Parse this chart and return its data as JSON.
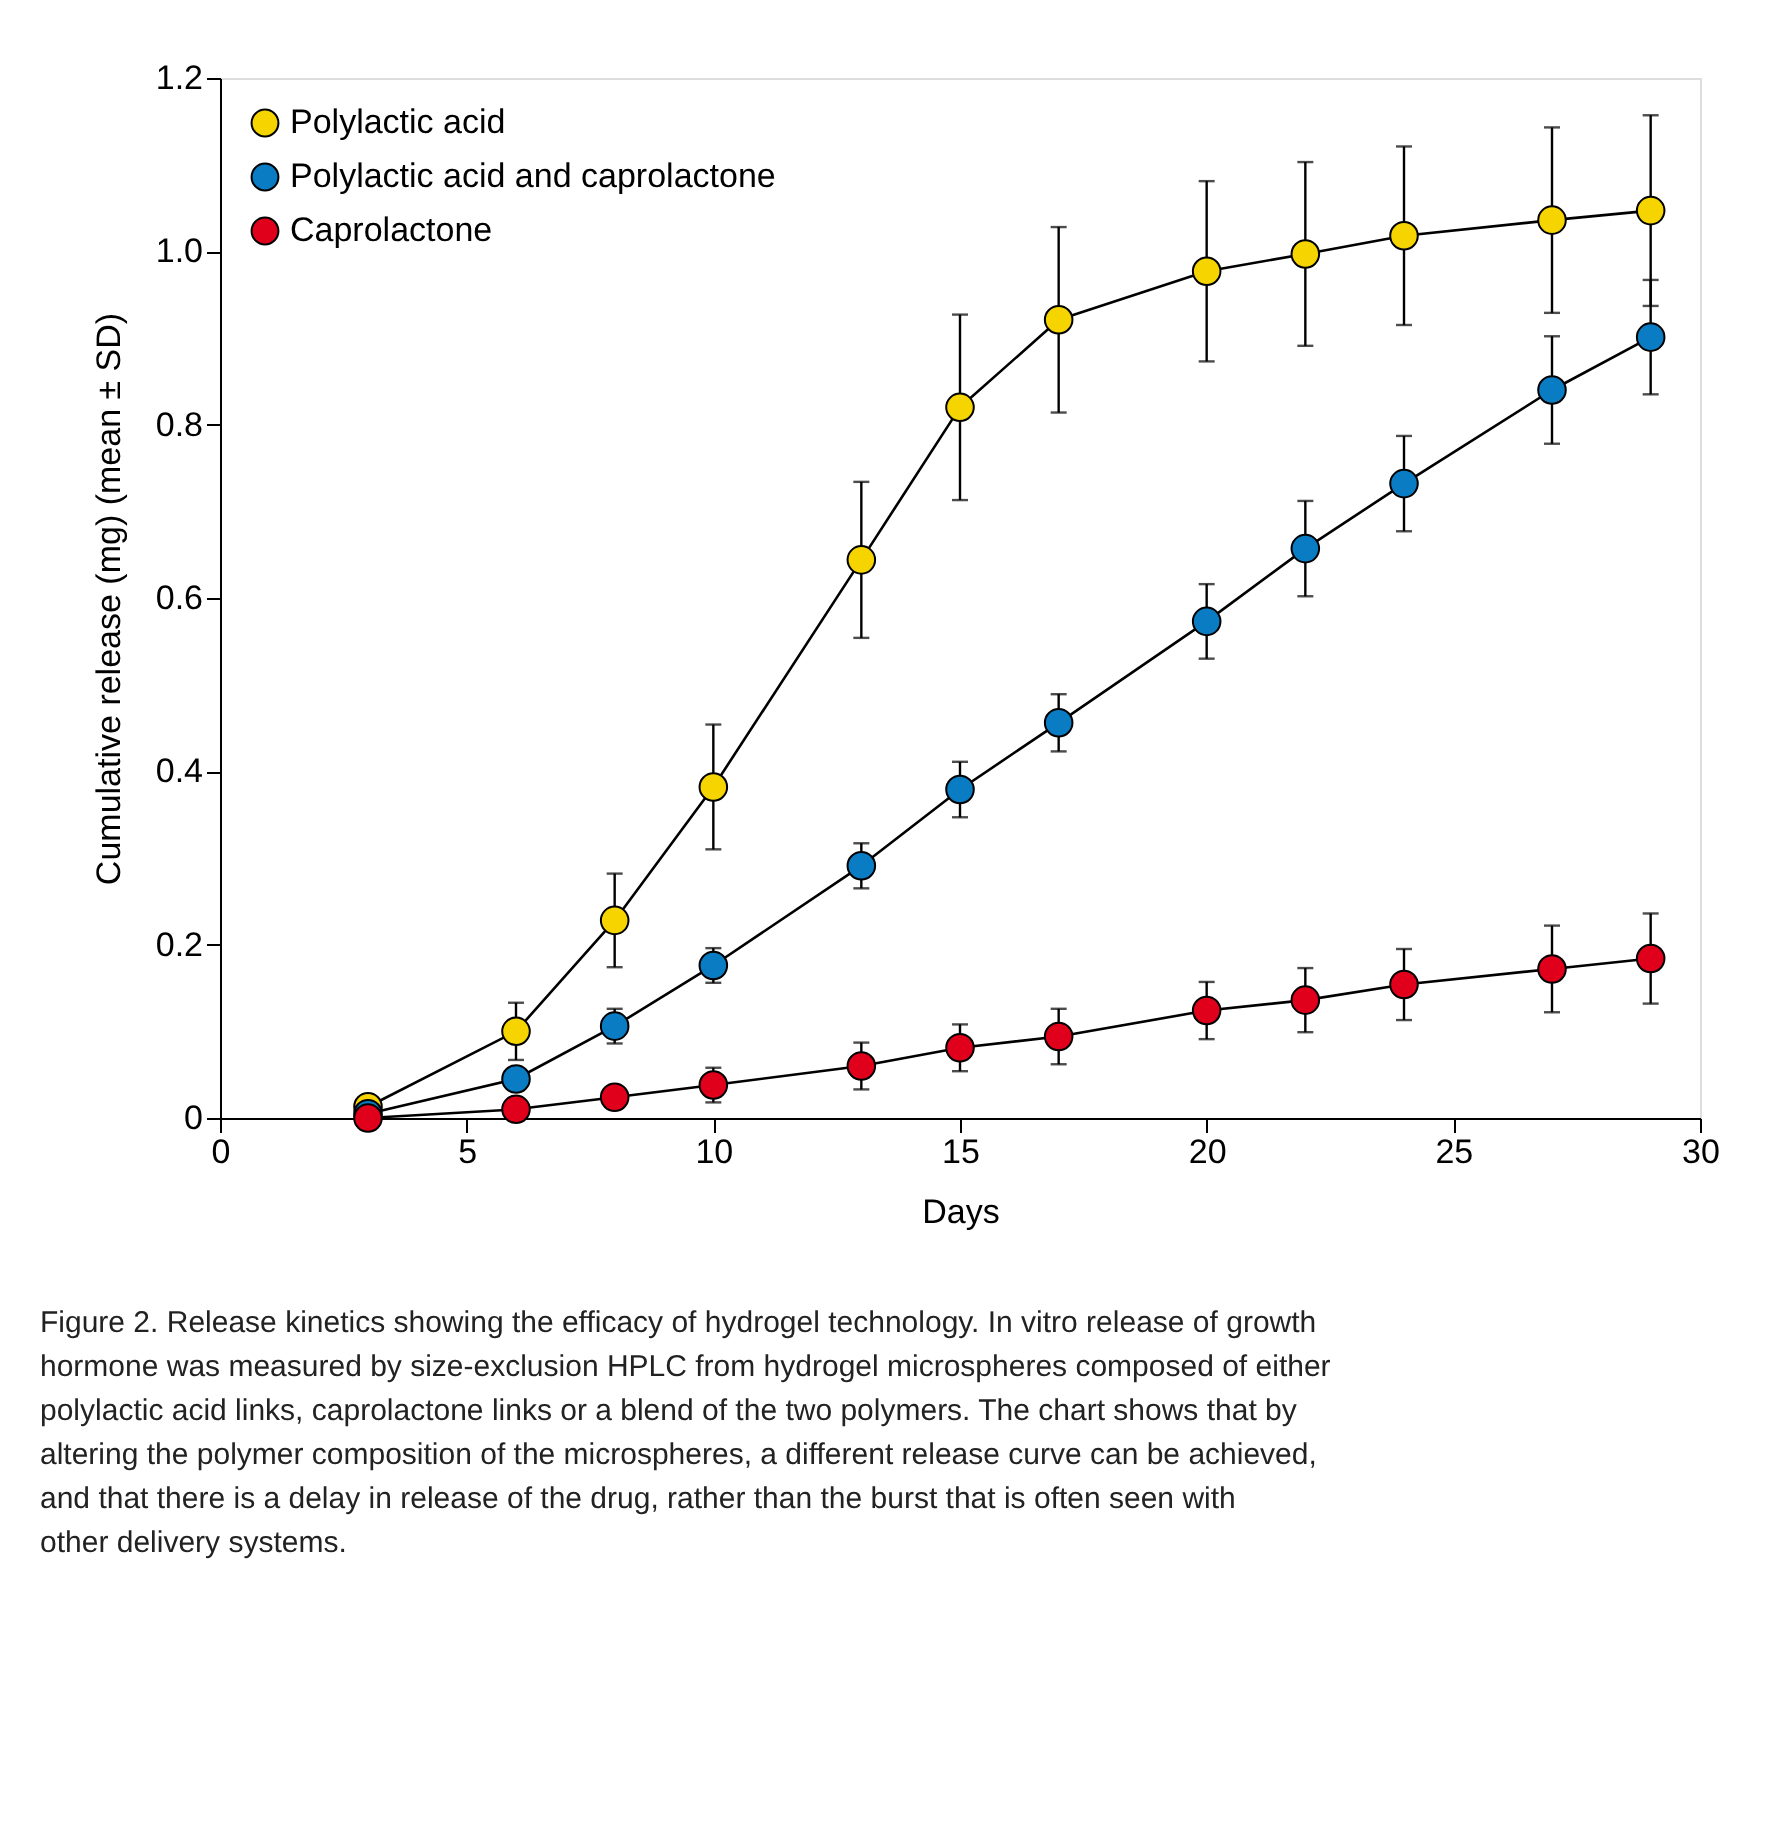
{
  "chart_data": {
    "type": "line",
    "xlabel": "Days",
    "ylabel": "Cumulative release (mg) (mean ± SD)",
    "x": [
      3,
      6,
      8,
      10,
      13,
      15,
      17,
      20,
      22,
      24,
      27,
      29
    ],
    "series": [
      {
        "name": "Polylactic acid",
        "color": "#f5d400",
        "values": [
          0.013,
          0.1,
          0.228,
          0.382,
          0.644,
          0.82,
          0.921,
          0.977,
          0.997,
          1.018,
          1.036,
          1.047
        ],
        "errors": [
          null,
          0.033,
          0.054,
          0.072,
          0.09,
          0.107,
          0.107,
          0.104,
          0.106,
          0.103,
          0.107,
          0.11
        ]
      },
      {
        "name": "Polylactic acid and caprolactone",
        "color": "#0a7cc4",
        "values": [
          0.005,
          0.045,
          0.106,
          0.176,
          0.291,
          0.379,
          0.456,
          0.573,
          0.657,
          0.732,
          0.84,
          0.901
        ],
        "errors": [
          null,
          0.012,
          0.02,
          0.02,
          0.026,
          0.032,
          0.033,
          0.043,
          0.055,
          0.055,
          0.062,
          0.066
        ]
      },
      {
        "name": "Caprolactone",
        "color": "#e0001b",
        "values": [
          0.0,
          0.01,
          0.024,
          0.038,
          0.06,
          0.081,
          0.094,
          0.124,
          0.136,
          0.154,
          0.172,
          0.184
        ],
        "errors": [
          null,
          null,
          0.012,
          0.02,
          0.027,
          0.027,
          0.032,
          0.033,
          0.037,
          0.041,
          0.05,
          0.052
        ]
      }
    ],
    "xlim": [
      0,
      30
    ],
    "xticks": [
      0,
      5,
      10,
      15,
      20,
      25,
      30
    ],
    "ylim": [
      0,
      1.2
    ],
    "yticks": [
      0,
      0.2,
      0.4,
      0.6,
      0.8,
      {
        "value": 1.0,
        "label": "1.0"
      },
      1.2
    ],
    "marker": "circle",
    "line_style": "solid",
    "grid": false,
    "legend": "top left",
    "annotations": [
      "Figure 2. Release kinetics showing the efficacy of hydrogel technology. In vitro release of growth hormone was measured by size-exclusion HPLC from hydrogel microspheres composed of either polylactic acid links, caprolactone links or a blend of the two polymers. The chart shows that by altering the polymer composition of the microspheres, a different release curve can be achieved, and that there is a delay in release of the drug, rather than the burst that is often seen with other delivery systems."
    ]
  }
}
